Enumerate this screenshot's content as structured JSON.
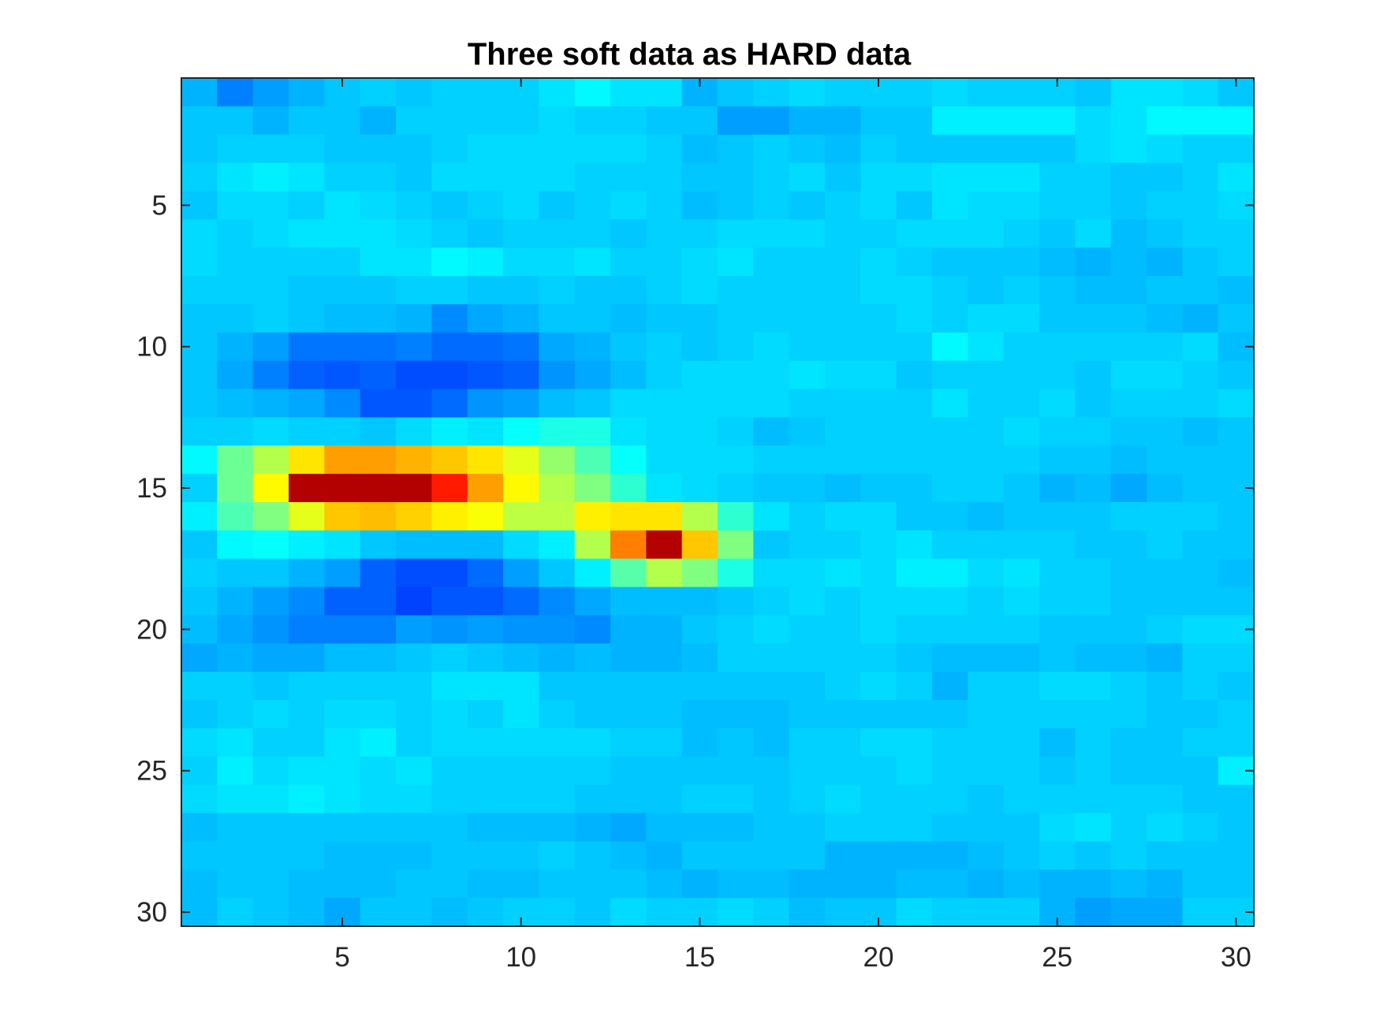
{
  "chart_data": {
    "type": "heatmap",
    "title": "Three soft data as HARD data",
    "xlabel": "",
    "ylabel": "",
    "x_range": [
      0.5,
      30.5
    ],
    "y_range": [
      0.5,
      30.5
    ],
    "y_reversed": true,
    "x_ticks": [
      5,
      10,
      15,
      20,
      25,
      30
    ],
    "y_ticks": [
      5,
      10,
      15,
      20,
      25,
      30
    ],
    "colormap": "jet",
    "value_range": [
      0,
      1
    ],
    "grid": false,
    "values": [
      [
        0.3,
        0.25,
        0.28,
        0.3,
        0.32,
        0.33,
        0.32,
        0.33,
        0.33,
        0.33,
        0.35,
        0.37,
        0.35,
        0.35,
        0.3,
        0.32,
        0.33,
        0.34,
        0.33,
        0.33,
        0.33,
        0.34,
        0.33,
        0.33,
        0.33,
        0.32,
        0.35,
        0.35,
        0.34,
        0.32
      ],
      [
        0.32,
        0.32,
        0.3,
        0.32,
        0.32,
        0.3,
        0.33,
        0.33,
        0.33,
        0.33,
        0.34,
        0.33,
        0.33,
        0.32,
        0.32,
        0.28,
        0.28,
        0.3,
        0.3,
        0.32,
        0.32,
        0.36,
        0.36,
        0.36,
        0.36,
        0.34,
        0.35,
        0.37,
        0.37,
        0.37
      ],
      [
        0.32,
        0.33,
        0.33,
        0.33,
        0.32,
        0.32,
        0.32,
        0.33,
        0.34,
        0.34,
        0.34,
        0.34,
        0.34,
        0.33,
        0.31,
        0.32,
        0.33,
        0.32,
        0.31,
        0.33,
        0.32,
        0.32,
        0.32,
        0.32,
        0.32,
        0.34,
        0.35,
        0.34,
        0.33,
        0.33
      ],
      [
        0.33,
        0.35,
        0.36,
        0.35,
        0.33,
        0.33,
        0.32,
        0.34,
        0.34,
        0.34,
        0.34,
        0.33,
        0.33,
        0.33,
        0.32,
        0.32,
        0.33,
        0.34,
        0.32,
        0.34,
        0.34,
        0.35,
        0.35,
        0.35,
        0.33,
        0.33,
        0.32,
        0.32,
        0.33,
        0.35
      ],
      [
        0.32,
        0.34,
        0.34,
        0.33,
        0.35,
        0.34,
        0.33,
        0.32,
        0.33,
        0.34,
        0.32,
        0.33,
        0.34,
        0.33,
        0.31,
        0.32,
        0.33,
        0.32,
        0.33,
        0.34,
        0.32,
        0.35,
        0.34,
        0.34,
        0.33,
        0.33,
        0.32,
        0.33,
        0.33,
        0.34
      ],
      [
        0.34,
        0.33,
        0.34,
        0.35,
        0.35,
        0.35,
        0.34,
        0.33,
        0.32,
        0.33,
        0.33,
        0.33,
        0.32,
        0.33,
        0.33,
        0.34,
        0.34,
        0.34,
        0.33,
        0.33,
        0.34,
        0.34,
        0.34,
        0.33,
        0.32,
        0.34,
        0.31,
        0.32,
        0.33,
        0.33
      ],
      [
        0.34,
        0.33,
        0.33,
        0.33,
        0.33,
        0.35,
        0.35,
        0.37,
        0.36,
        0.34,
        0.34,
        0.35,
        0.33,
        0.33,
        0.34,
        0.35,
        0.33,
        0.33,
        0.33,
        0.34,
        0.33,
        0.32,
        0.32,
        0.32,
        0.31,
        0.3,
        0.31,
        0.3,
        0.32,
        0.33
      ],
      [
        0.33,
        0.33,
        0.33,
        0.32,
        0.32,
        0.32,
        0.33,
        0.33,
        0.32,
        0.32,
        0.33,
        0.32,
        0.32,
        0.33,
        0.34,
        0.33,
        0.33,
        0.33,
        0.33,
        0.34,
        0.34,
        0.33,
        0.32,
        0.33,
        0.32,
        0.31,
        0.31,
        0.32,
        0.32,
        0.31
      ],
      [
        0.32,
        0.32,
        0.33,
        0.32,
        0.31,
        0.31,
        0.3,
        0.26,
        0.29,
        0.3,
        0.32,
        0.32,
        0.31,
        0.32,
        0.32,
        0.33,
        0.33,
        0.33,
        0.33,
        0.33,
        0.34,
        0.33,
        0.34,
        0.34,
        0.32,
        0.32,
        0.32,
        0.31,
        0.3,
        0.32
      ],
      [
        0.32,
        0.3,
        0.28,
        0.24,
        0.24,
        0.24,
        0.25,
        0.23,
        0.23,
        0.24,
        0.29,
        0.3,
        0.32,
        0.33,
        0.32,
        0.33,
        0.34,
        0.33,
        0.33,
        0.33,
        0.33,
        0.37,
        0.35,
        0.33,
        0.33,
        0.33,
        0.33,
        0.33,
        0.34,
        0.31
      ],
      [
        0.32,
        0.29,
        0.25,
        0.22,
        0.21,
        0.22,
        0.2,
        0.2,
        0.21,
        0.22,
        0.27,
        0.29,
        0.31,
        0.33,
        0.34,
        0.34,
        0.34,
        0.35,
        0.34,
        0.34,
        0.32,
        0.33,
        0.33,
        0.33,
        0.33,
        0.32,
        0.34,
        0.34,
        0.33,
        0.32
      ],
      [
        0.32,
        0.31,
        0.3,
        0.29,
        0.26,
        0.21,
        0.21,
        0.23,
        0.27,
        0.28,
        0.31,
        0.32,
        0.34,
        0.34,
        0.34,
        0.34,
        0.34,
        0.33,
        0.33,
        0.33,
        0.33,
        0.35,
        0.33,
        0.33,
        0.34,
        0.32,
        0.33,
        0.33,
        0.33,
        0.34
      ],
      [
        0.33,
        0.33,
        0.34,
        0.33,
        0.33,
        0.32,
        0.34,
        0.36,
        0.35,
        0.38,
        0.4,
        0.4,
        0.35,
        0.34,
        0.34,
        0.33,
        0.31,
        0.32,
        0.33,
        0.33,
        0.33,
        0.33,
        0.33,
        0.34,
        0.33,
        0.33,
        0.32,
        0.32,
        0.31,
        0.32
      ],
      [
        0.37,
        0.48,
        0.55,
        0.65,
        0.72,
        0.72,
        0.7,
        0.68,
        0.65,
        0.6,
        0.52,
        0.45,
        0.38,
        0.34,
        0.34,
        0.34,
        0.33,
        0.33,
        0.33,
        0.33,
        0.33,
        0.33,
        0.33,
        0.33,
        0.32,
        0.32,
        0.31,
        0.32,
        0.32,
        0.32
      ],
      [
        0.33,
        0.48,
        0.63,
        0.95,
        0.95,
        0.95,
        0.95,
        0.85,
        0.72,
        0.63,
        0.55,
        0.5,
        0.42,
        0.35,
        0.34,
        0.33,
        0.32,
        0.32,
        0.31,
        0.32,
        0.32,
        0.33,
        0.33,
        0.32,
        0.3,
        0.31,
        0.29,
        0.31,
        0.32,
        0.32
      ],
      [
        0.36,
        0.45,
        0.5,
        0.6,
        0.68,
        0.69,
        0.67,
        0.64,
        0.62,
        0.56,
        0.56,
        0.64,
        0.65,
        0.65,
        0.55,
        0.42,
        0.35,
        0.33,
        0.34,
        0.34,
        0.32,
        0.32,
        0.31,
        0.32,
        0.32,
        0.32,
        0.33,
        0.33,
        0.33,
        0.32
      ],
      [
        0.32,
        0.37,
        0.38,
        0.36,
        0.35,
        0.32,
        0.31,
        0.31,
        0.31,
        0.34,
        0.36,
        0.55,
        0.75,
        0.95,
        0.68,
        0.5,
        0.32,
        0.33,
        0.33,
        0.34,
        0.35,
        0.33,
        0.33,
        0.33,
        0.33,
        0.32,
        0.32,
        0.33,
        0.32,
        0.32
      ],
      [
        0.33,
        0.32,
        0.32,
        0.3,
        0.28,
        0.22,
        0.2,
        0.2,
        0.23,
        0.28,
        0.32,
        0.36,
        0.46,
        0.55,
        0.5,
        0.4,
        0.34,
        0.34,
        0.35,
        0.34,
        0.36,
        0.36,
        0.34,
        0.35,
        0.33,
        0.33,
        0.32,
        0.32,
        0.32,
        0.31
      ],
      [
        0.32,
        0.3,
        0.28,
        0.26,
        0.22,
        0.22,
        0.19,
        0.21,
        0.21,
        0.23,
        0.26,
        0.29,
        0.31,
        0.31,
        0.31,
        0.32,
        0.33,
        0.34,
        0.33,
        0.34,
        0.34,
        0.34,
        0.33,
        0.34,
        0.33,
        0.33,
        0.32,
        0.32,
        0.32,
        0.32
      ],
      [
        0.31,
        0.29,
        0.27,
        0.25,
        0.25,
        0.25,
        0.28,
        0.27,
        0.28,
        0.27,
        0.27,
        0.26,
        0.3,
        0.3,
        0.32,
        0.33,
        0.34,
        0.33,
        0.33,
        0.34,
        0.33,
        0.33,
        0.33,
        0.33,
        0.32,
        0.32,
        0.32,
        0.33,
        0.34,
        0.34
      ],
      [
        0.29,
        0.3,
        0.29,
        0.29,
        0.31,
        0.31,
        0.32,
        0.33,
        0.32,
        0.31,
        0.3,
        0.31,
        0.3,
        0.3,
        0.31,
        0.33,
        0.33,
        0.33,
        0.33,
        0.33,
        0.32,
        0.31,
        0.31,
        0.31,
        0.32,
        0.31,
        0.31,
        0.3,
        0.33,
        0.33
      ],
      [
        0.33,
        0.33,
        0.32,
        0.33,
        0.33,
        0.33,
        0.33,
        0.35,
        0.35,
        0.35,
        0.32,
        0.32,
        0.32,
        0.32,
        0.32,
        0.32,
        0.32,
        0.32,
        0.33,
        0.34,
        0.33,
        0.3,
        0.33,
        0.33,
        0.34,
        0.34,
        0.33,
        0.32,
        0.33,
        0.32
      ],
      [
        0.32,
        0.33,
        0.34,
        0.33,
        0.34,
        0.34,
        0.33,
        0.34,
        0.33,
        0.35,
        0.33,
        0.32,
        0.32,
        0.32,
        0.31,
        0.31,
        0.31,
        0.32,
        0.32,
        0.32,
        0.32,
        0.32,
        0.33,
        0.33,
        0.33,
        0.33,
        0.33,
        0.32,
        0.32,
        0.33
      ],
      [
        0.34,
        0.35,
        0.33,
        0.33,
        0.35,
        0.36,
        0.33,
        0.34,
        0.34,
        0.34,
        0.34,
        0.34,
        0.33,
        0.33,
        0.31,
        0.32,
        0.31,
        0.33,
        0.33,
        0.34,
        0.34,
        0.33,
        0.33,
        0.33,
        0.31,
        0.33,
        0.32,
        0.32,
        0.33,
        0.33
      ],
      [
        0.33,
        0.36,
        0.34,
        0.35,
        0.35,
        0.34,
        0.35,
        0.33,
        0.33,
        0.33,
        0.33,
        0.33,
        0.32,
        0.32,
        0.32,
        0.32,
        0.32,
        0.33,
        0.33,
        0.33,
        0.34,
        0.33,
        0.33,
        0.33,
        0.32,
        0.33,
        0.32,
        0.32,
        0.32,
        0.36
      ],
      [
        0.34,
        0.35,
        0.35,
        0.36,
        0.35,
        0.34,
        0.34,
        0.33,
        0.33,
        0.33,
        0.33,
        0.32,
        0.32,
        0.32,
        0.33,
        0.33,
        0.32,
        0.33,
        0.34,
        0.33,
        0.33,
        0.33,
        0.32,
        0.33,
        0.33,
        0.33,
        0.33,
        0.33,
        0.32,
        0.32
      ],
      [
        0.31,
        0.32,
        0.32,
        0.32,
        0.32,
        0.32,
        0.32,
        0.32,
        0.31,
        0.31,
        0.31,
        0.3,
        0.29,
        0.31,
        0.31,
        0.31,
        0.32,
        0.32,
        0.33,
        0.33,
        0.33,
        0.32,
        0.32,
        0.32,
        0.34,
        0.35,
        0.33,
        0.34,
        0.33,
        0.32
      ],
      [
        0.32,
        0.32,
        0.32,
        0.32,
        0.31,
        0.31,
        0.31,
        0.32,
        0.32,
        0.32,
        0.33,
        0.32,
        0.31,
        0.3,
        0.32,
        0.32,
        0.32,
        0.32,
        0.3,
        0.3,
        0.3,
        0.3,
        0.31,
        0.32,
        0.33,
        0.32,
        0.33,
        0.32,
        0.32,
        0.32
      ],
      [
        0.31,
        0.32,
        0.32,
        0.31,
        0.31,
        0.31,
        0.32,
        0.32,
        0.31,
        0.31,
        0.32,
        0.32,
        0.32,
        0.31,
        0.3,
        0.31,
        0.31,
        0.3,
        0.3,
        0.3,
        0.31,
        0.31,
        0.3,
        0.31,
        0.3,
        0.3,
        0.31,
        0.3,
        0.32,
        0.32
      ],
      [
        0.31,
        0.33,
        0.32,
        0.31,
        0.29,
        0.32,
        0.32,
        0.31,
        0.32,
        0.33,
        0.33,
        0.32,
        0.34,
        0.33,
        0.33,
        0.34,
        0.33,
        0.31,
        0.32,
        0.32,
        0.34,
        0.33,
        0.33,
        0.33,
        0.3,
        0.28,
        0.29,
        0.29,
        0.33,
        0.33
      ]
    ]
  }
}
